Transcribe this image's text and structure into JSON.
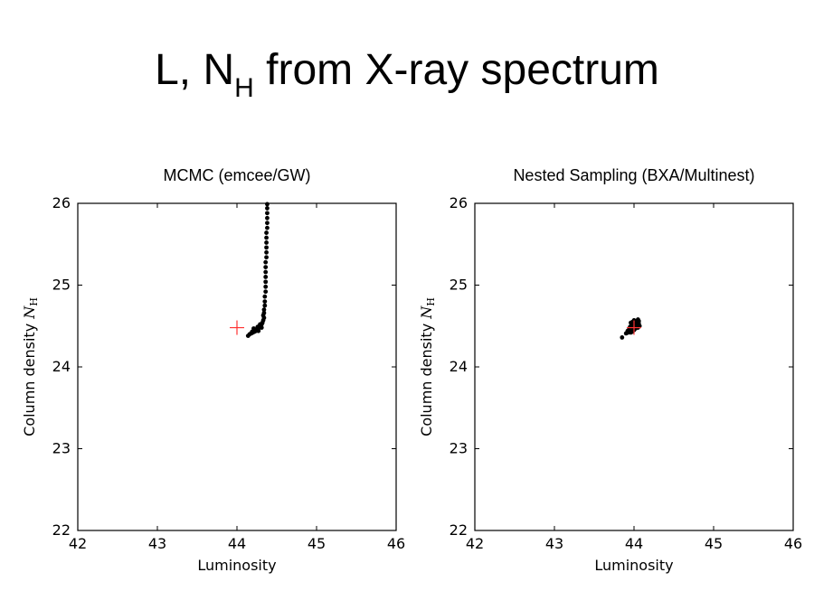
{
  "slide": {
    "title_main": "L, N",
    "title_sub": "H",
    "title_rest": " from X-ray spectrum"
  },
  "chart_data": [
    {
      "type": "scatter",
      "title": "MCMC (emcee/GW)",
      "xlabel": "Luminosity",
      "ylabel": "Column density N_H",
      "xlim": [
        42,
        46
      ],
      "ylim": [
        22,
        26
      ],
      "xticks": [
        "42",
        "43",
        "44",
        "45",
        "46"
      ],
      "yticks": [
        "22",
        "23",
        "24",
        "25",
        "26"
      ],
      "grid": false,
      "point_color": "#000000",
      "marker_color": "#ff3333",
      "true_value": {
        "x": 44.0,
        "y": 24.48
      },
      "points": [
        [
          44.14,
          24.38
        ],
        [
          44.16,
          24.4
        ],
        [
          44.18,
          24.41
        ],
        [
          44.2,
          24.42
        ],
        [
          44.22,
          24.43
        ],
        [
          44.24,
          24.44
        ],
        [
          44.25,
          24.46
        ],
        [
          44.27,
          24.47
        ],
        [
          44.28,
          24.48
        ],
        [
          44.3,
          24.5
        ],
        [
          44.31,
          24.52
        ],
        [
          44.32,
          24.54
        ],
        [
          44.33,
          24.57
        ],
        [
          44.34,
          24.6
        ],
        [
          44.33,
          24.63
        ],
        [
          44.34,
          24.66
        ],
        [
          44.34,
          24.7
        ],
        [
          44.35,
          24.75
        ],
        [
          44.35,
          24.8
        ],
        [
          44.35,
          24.86
        ],
        [
          44.36,
          24.92
        ],
        [
          44.36,
          24.98
        ],
        [
          44.36,
          25.04
        ],
        [
          44.36,
          25.1
        ],
        [
          44.36,
          25.16
        ],
        [
          44.36,
          25.22
        ],
        [
          44.36,
          25.28
        ],
        [
          44.37,
          25.34
        ],
        [
          44.37,
          25.4
        ],
        [
          44.37,
          25.46
        ],
        [
          44.37,
          25.52
        ],
        [
          44.37,
          25.58
        ],
        [
          44.37,
          25.64
        ],
        [
          44.38,
          25.7
        ],
        [
          44.38,
          25.76
        ],
        [
          44.38,
          25.82
        ],
        [
          44.38,
          25.88
        ],
        [
          44.38,
          25.94
        ],
        [
          44.38,
          25.99
        ],
        [
          44.19,
          24.43
        ],
        [
          44.23,
          24.45
        ],
        [
          44.26,
          24.49
        ],
        [
          44.29,
          24.52
        ],
        [
          44.21,
          24.47
        ],
        [
          44.27,
          24.44
        ],
        [
          44.31,
          24.48
        ]
      ]
    },
    {
      "type": "scatter",
      "title": "Nested Sampling (BXA/Multinest)",
      "xlabel": "Luminosity",
      "ylabel": "Column density N_H",
      "xlim": [
        42,
        46
      ],
      "ylim": [
        22,
        26
      ],
      "xticks": [
        "42",
        "43",
        "44",
        "45",
        "46"
      ],
      "yticks": [
        "22",
        "23",
        "24",
        "25",
        "26"
      ],
      "grid": false,
      "point_color": "#000000",
      "marker_color": "#ff3333",
      "true_value": {
        "x": 44.0,
        "y": 24.48
      },
      "points": [
        [
          43.85,
          24.36
        ],
        [
          43.9,
          24.41
        ],
        [
          43.92,
          24.44
        ],
        [
          43.94,
          24.46
        ],
        [
          43.95,
          24.49
        ],
        [
          43.97,
          24.52
        ],
        [
          43.98,
          24.55
        ],
        [
          44.0,
          24.57
        ],
        [
          44.02,
          24.56
        ],
        [
          44.04,
          24.55
        ],
        [
          44.06,
          24.53
        ],
        [
          44.07,
          24.5
        ],
        [
          44.05,
          24.48
        ],
        [
          44.02,
          24.47
        ],
        [
          44.0,
          24.45
        ],
        [
          43.98,
          24.43
        ],
        [
          43.96,
          24.42
        ],
        [
          43.99,
          24.5
        ],
        [
          44.01,
          24.52
        ],
        [
          44.03,
          24.5
        ],
        [
          43.97,
          24.47
        ],
        [
          43.93,
          24.42
        ],
        [
          44.05,
          24.58
        ],
        [
          44.06,
          24.56
        ],
        [
          43.96,
          24.54
        ],
        [
          44.0,
          24.49
        ],
        [
          44.04,
          24.52
        ],
        [
          43.95,
          24.45
        ],
        [
          44.02,
          24.53
        ],
        [
          43.98,
          24.48
        ]
      ]
    }
  ]
}
